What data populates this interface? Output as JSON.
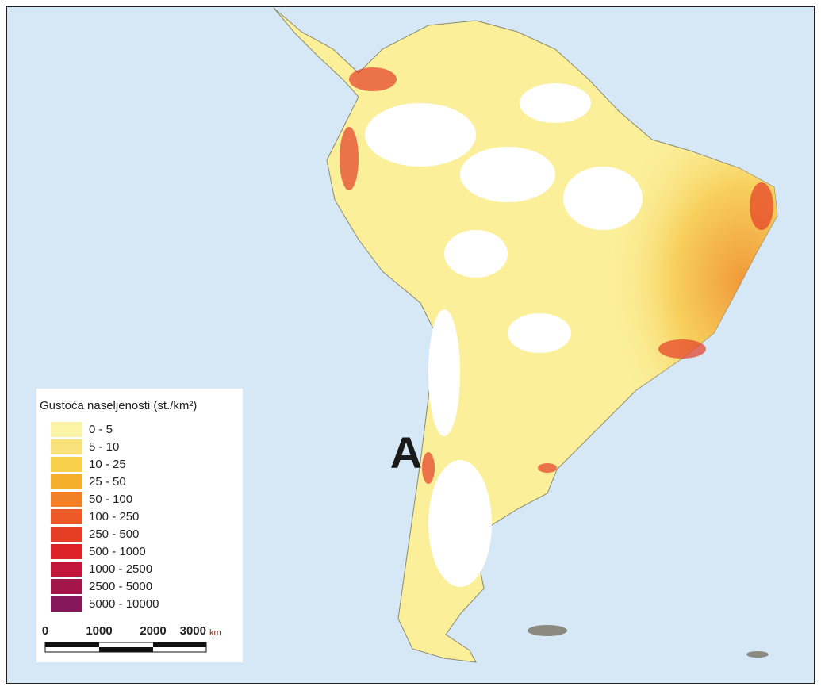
{
  "legend": {
    "title": "Gustoća naseljenosti (st./km²)",
    "items": [
      {
        "label": "0 - 5",
        "color": "#fbf3a6"
      },
      {
        "label": "5 - 10",
        "color": "#f9e27a"
      },
      {
        "label": "10 - 25",
        "color": "#f7cf4a"
      },
      {
        "label": "25 - 50",
        "color": "#f5ae2a"
      },
      {
        "label": "50 - 100",
        "color": "#f18026"
      },
      {
        "label": "100 - 250",
        "color": "#ed5a27"
      },
      {
        "label": "250 - 500",
        "color": "#e63d26"
      },
      {
        "label": "500 - 1000",
        "color": "#dc2428"
      },
      {
        "label": "1000 - 2500",
        "color": "#c2173a"
      },
      {
        "label": "2500 - 5000",
        "color": "#a3164a"
      },
      {
        "label": "5000 - 10000",
        "color": "#86165a"
      }
    ]
  },
  "map_label": "A",
  "scale_bar": {
    "ticks": [
      "0",
      "1000",
      "2000",
      "3000"
    ],
    "unit": "km"
  }
}
